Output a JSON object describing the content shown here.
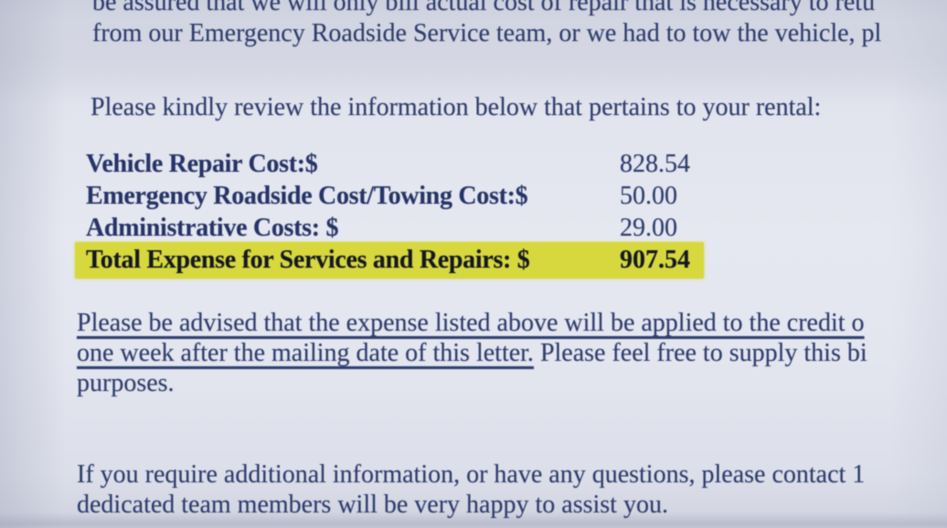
{
  "page": {
    "colors": {
      "paper": "#e4e6ef",
      "ink": "#2e3c6c",
      "ink_bold": "#273467",
      "highlight": "#d6d83d",
      "highlight_ink": "#15181f"
    },
    "top_paragraph": {
      "line1": "be assured that we will only bill actual cost of repair that is necessary to retu",
      "line2": "from our Emergency Roadside Service team, or we had to tow the vehicle, pl"
    },
    "intro_line": "Please kindly review the information below that pertains to your rental:",
    "cost_table": {
      "rows": [
        {
          "label": "Vehicle Repair Cost:$",
          "value": "828.54",
          "highlighted": false
        },
        {
          "label": "Emergency Roadside Cost/Towing Cost:$",
          "value": "50.00",
          "highlighted": false
        },
        {
          "label": "Administrative Costs: $",
          "value": "29.00",
          "highlighted": false
        },
        {
          "label": "Total Expense for Services and Repairs: $",
          "value": "907.54",
          "highlighted": true
        }
      ]
    },
    "notice_paragraph": {
      "line1_underlined": "Please be advised that the expense listed above will be applied to the credit o",
      "line2_underlined": "one week after the mailing date of this letter.",
      "line2_plain": " Please feel free to supply this bi",
      "line3": "purposes."
    },
    "closing_paragraph": {
      "line1": "If you require additional information, or have any questions, please contact 1",
      "line2": "dedicated team members will be very happy to assist you."
    }
  }
}
